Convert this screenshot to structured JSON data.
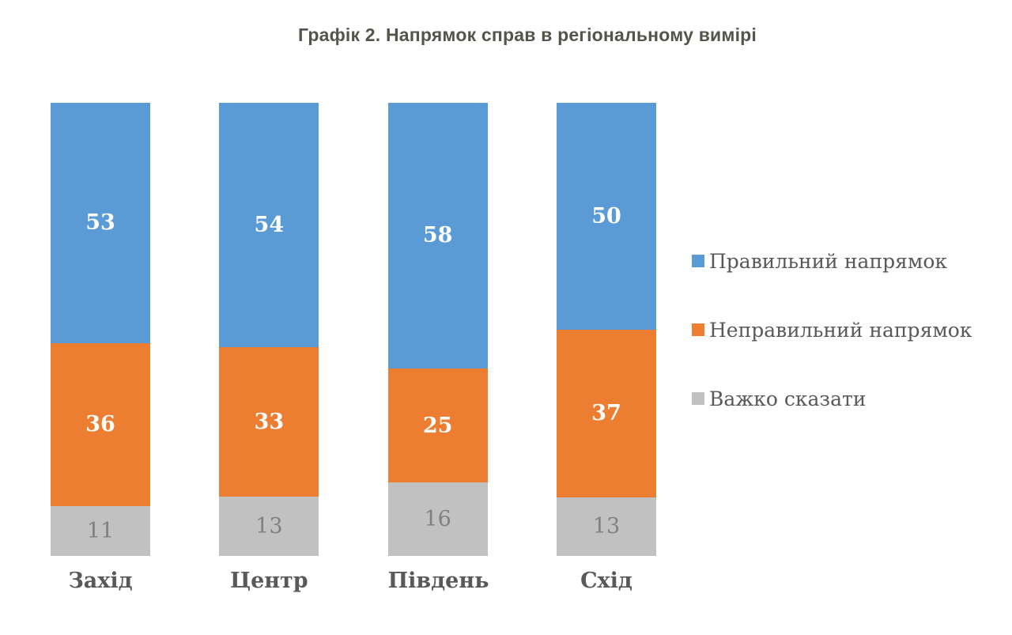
{
  "title": "Графік 2. Напрямок справ в регіональному вимірі",
  "chart_data": {
    "type": "bar",
    "subtype": "stacked-percent-column",
    "title": "Графік 2. Напрямок справ в регіональному вимірі",
    "categories": [
      "Захід",
      "Центр",
      "Південь",
      "Схід"
    ],
    "series": [
      {
        "name": "Правильний напрямок",
        "color": "#5B9BD5",
        "values": [
          53,
          54,
          58,
          50
        ],
        "label_color": "#ffffff",
        "label_weight": "bold"
      },
      {
        "name": "Неправильний напрямок",
        "color": "#ED7D31",
        "values": [
          36,
          33,
          25,
          37
        ],
        "label_color": "#ffffff",
        "label_weight": "bold"
      },
      {
        "name": "Важко сказати",
        "color": "#C1C1C1",
        "values": [
          11,
          13,
          16,
          13
        ],
        "label_color": "#808080",
        "label_weight": "normal"
      }
    ],
    "legend_position": "right",
    "grid": false,
    "axes_visible": false,
    "data_labels": true
  },
  "colors": {
    "title": "#55544c",
    "category_label": "#595959",
    "legend_text": "#595959",
    "background": "#ffffff"
  }
}
